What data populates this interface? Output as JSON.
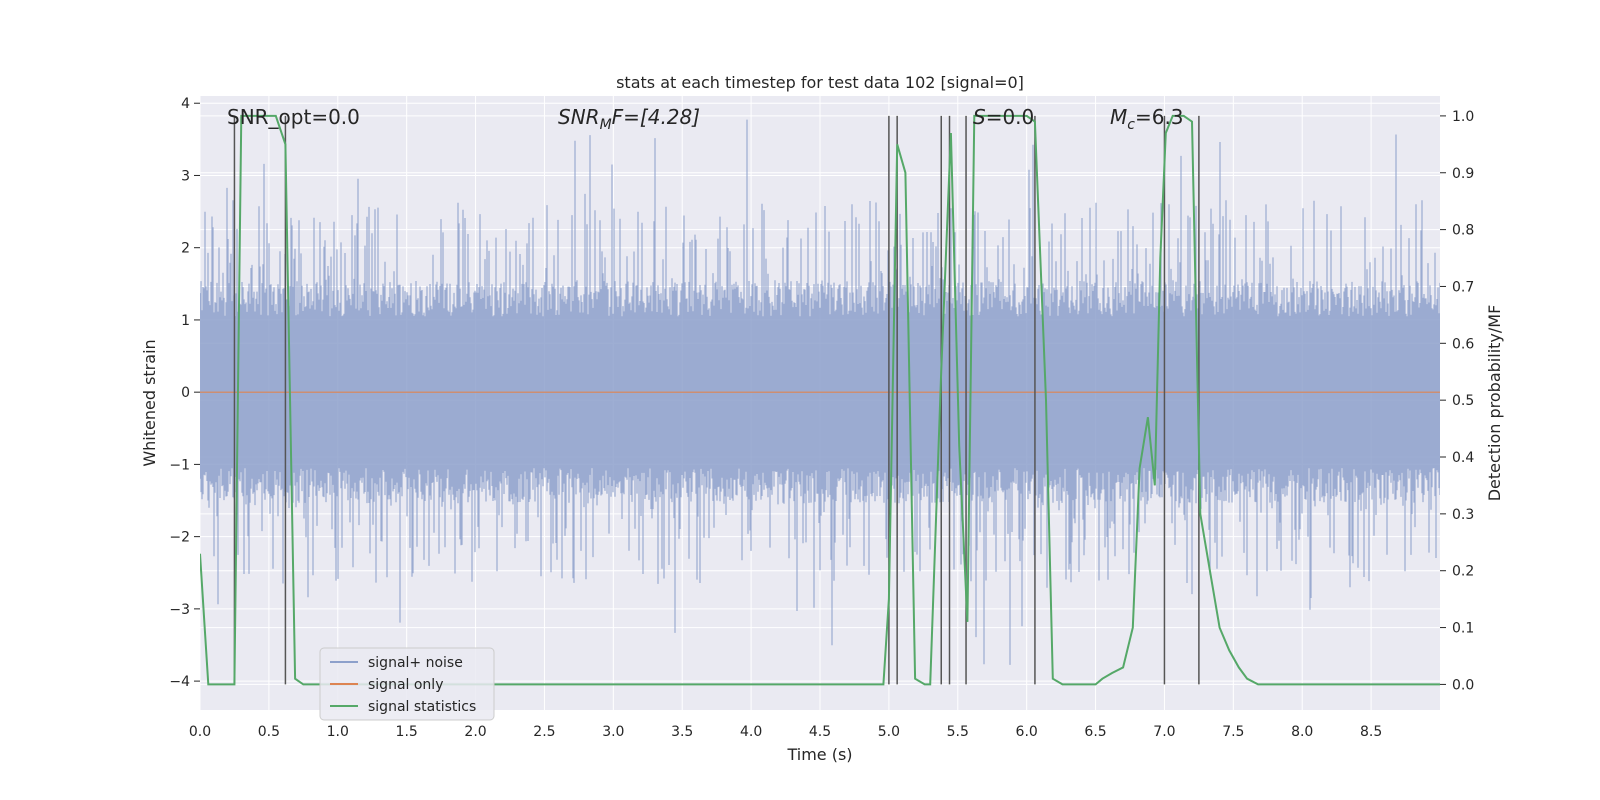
{
  "chart_data": {
    "type": "line",
    "title": "stats at each timestep for test data 102 [signal=0]",
    "xlabel": "Time (s)",
    "ylabel_left": "Whitened strain",
    "ylabel_right": "Detection probability/MF",
    "xlim": [
      0.0,
      9.0
    ],
    "ylim_left": [
      -4.4,
      4.1
    ],
    "ylim_right": [
      -0.045,
      1.035
    ],
    "xticks": [
      "0.0",
      "0.5",
      "1.0",
      "1.5",
      "2.0",
      "2.5",
      "3.0",
      "3.5",
      "4.0",
      "4.5",
      "5.0",
      "5.5",
      "6.0",
      "6.5",
      "7.0",
      "7.5",
      "8.0",
      "8.5"
    ],
    "yticks_left": [
      "−4",
      "−3",
      "−2",
      "−1",
      "0",
      "1",
      "2",
      "3",
      "4"
    ],
    "yticks_right": [
      "0.0",
      "0.1",
      "0.2",
      "0.3",
      "0.4",
      "0.5",
      "0.6",
      "0.7",
      "0.8",
      "0.9",
      "1.0"
    ],
    "grid": true,
    "legend_position": "lower-left",
    "annotations": {
      "snr_opt": "SNR_opt=0.0",
      "snr_mf_sym": "SNR",
      "snr_mf_sub": "M",
      "snr_mf_rest": "F=[4.28]",
      "s_sym": "S",
      "s_rest": "=0.0",
      "mc_sym": "M",
      "mc_sub": "c",
      "mc_rest": "=6.3"
    },
    "series": [
      {
        "name": "signal+ noise",
        "color": "#8da0cb",
        "axis": "left",
        "band": {
          "core": 1.4,
          "peak_typical": 2.6,
          "peak_max": 3.8
        }
      },
      {
        "name": "signal only",
        "color": "#dd8452",
        "axis": "left",
        "values": {
          "x": [
            0.0,
            9.0
          ],
          "y": [
            0.0,
            0.0
          ]
        }
      },
      {
        "name": "signal statistics",
        "color": "#55a868",
        "axis": "right",
        "x": [
          0.0,
          0.06,
          0.25,
          0.3,
          0.55,
          0.62,
          0.69,
          0.75,
          1.0,
          2.0,
          3.0,
          4.0,
          4.96,
          5.0,
          5.06,
          5.12,
          5.19,
          5.26,
          5.3,
          5.38,
          5.45,
          5.51,
          5.57,
          5.62,
          5.7,
          6.0,
          6.06,
          6.14,
          6.19,
          6.26,
          6.5,
          6.55,
          6.62,
          6.7,
          6.77,
          6.82,
          6.88,
          6.93,
          6.97,
          7.01,
          7.06,
          7.14,
          7.2,
          7.26,
          7.33,
          7.4,
          7.47,
          7.54,
          7.6,
          7.68,
          8.0,
          9.0
        ],
        "y": [
          0.23,
          0.0,
          0.0,
          1.0,
          1.0,
          0.95,
          0.01,
          0.0,
          0.0,
          0.0,
          0.0,
          0.0,
          0.0,
          0.15,
          0.95,
          0.9,
          0.01,
          0.0,
          0.0,
          0.55,
          0.97,
          0.42,
          0.11,
          1.0,
          1.0,
          1.0,
          0.99,
          0.5,
          0.01,
          0.0,
          0.0,
          0.01,
          0.02,
          0.03,
          0.1,
          0.38,
          0.47,
          0.35,
          0.75,
          0.97,
          1.0,
          1.0,
          0.99,
          0.3,
          0.2,
          0.1,
          0.06,
          0.03,
          0.01,
          0.0,
          0.0,
          0.0
        ]
      }
    ],
    "vertical_markers": [
      0.25,
      0.62,
      5.0,
      5.06,
      5.38,
      5.44,
      5.56,
      6.06,
      7.0,
      7.25
    ]
  },
  "colors": {
    "plot_bg": "#eaeaf2",
    "grid": "#ffffff",
    "marker_line": "#555555"
  }
}
